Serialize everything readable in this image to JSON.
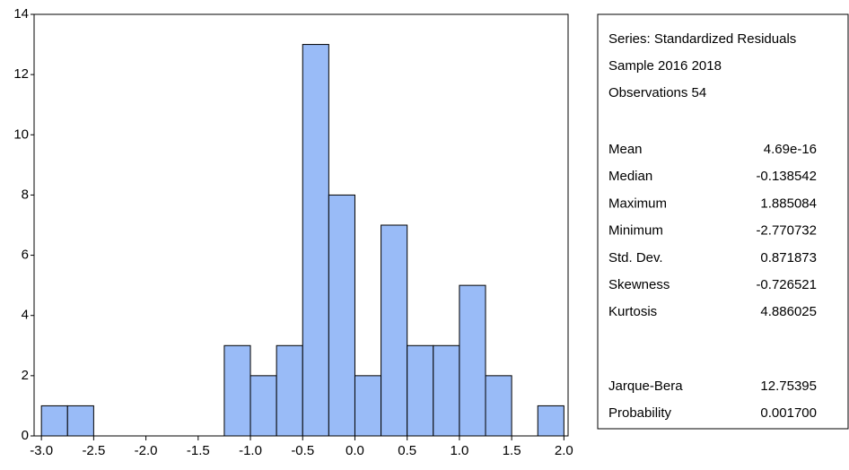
{
  "chart_data": {
    "type": "histogram",
    "bins": [
      -3.0,
      -2.75,
      -2.5,
      -2.25,
      -2.0,
      -1.75,
      -1.5,
      -1.25,
      -1.0,
      -0.75,
      -0.5,
      -0.25,
      0.0,
      0.25,
      0.5,
      0.75,
      1.0,
      1.25,
      1.5,
      1.75,
      2.0
    ],
    "values": [
      1,
      1,
      0,
      0,
      0,
      0,
      0,
      3,
      2,
      3,
      13,
      8,
      2,
      7,
      3,
      3,
      5,
      2,
      0,
      1
    ],
    "color": "#99bbf7",
    "xlim": [
      -3.07,
      2.04
    ],
    "xticks": [
      {
        "value": -3.0,
        "label": "-3.0"
      },
      -2.5,
      {
        "value": -2.0,
        "label": "-2.0"
      },
      -1.5,
      {
        "value": -1.0,
        "label": "-1.0"
      },
      -0.5,
      {
        "value": 0.0,
        "label": "0.0"
      },
      0.5,
      {
        "value": 1.0,
        "label": "1.0"
      },
      1.5,
      {
        "value": 2.0,
        "label": "2.0"
      }
    ],
    "ylim": [
      0,
      14
    ],
    "yticks": [
      0,
      2,
      4,
      6,
      8,
      10,
      12,
      14
    ],
    "grid": false
  },
  "stats_panel": {
    "header": [
      "Series: Standardized Residuals",
      "Sample 2016 2018",
      "Observations 54"
    ],
    "rows": [
      [
        "Mean",
        "4.69e-16"
      ],
      [
        "Median",
        "-0.138542"
      ],
      [
        "Maximum",
        "1.885084"
      ],
      [
        "Minimum",
        "-2.770732"
      ],
      [
        "Std. Dev.",
        "0.871873"
      ],
      [
        "Skewness",
        "-0.726521"
      ],
      [
        "Kurtosis",
        "4.886025"
      ]
    ],
    "tests": [
      [
        "Jarque-Bera",
        "12.75395"
      ],
      [
        "Probability",
        "0.001700"
      ]
    ]
  }
}
